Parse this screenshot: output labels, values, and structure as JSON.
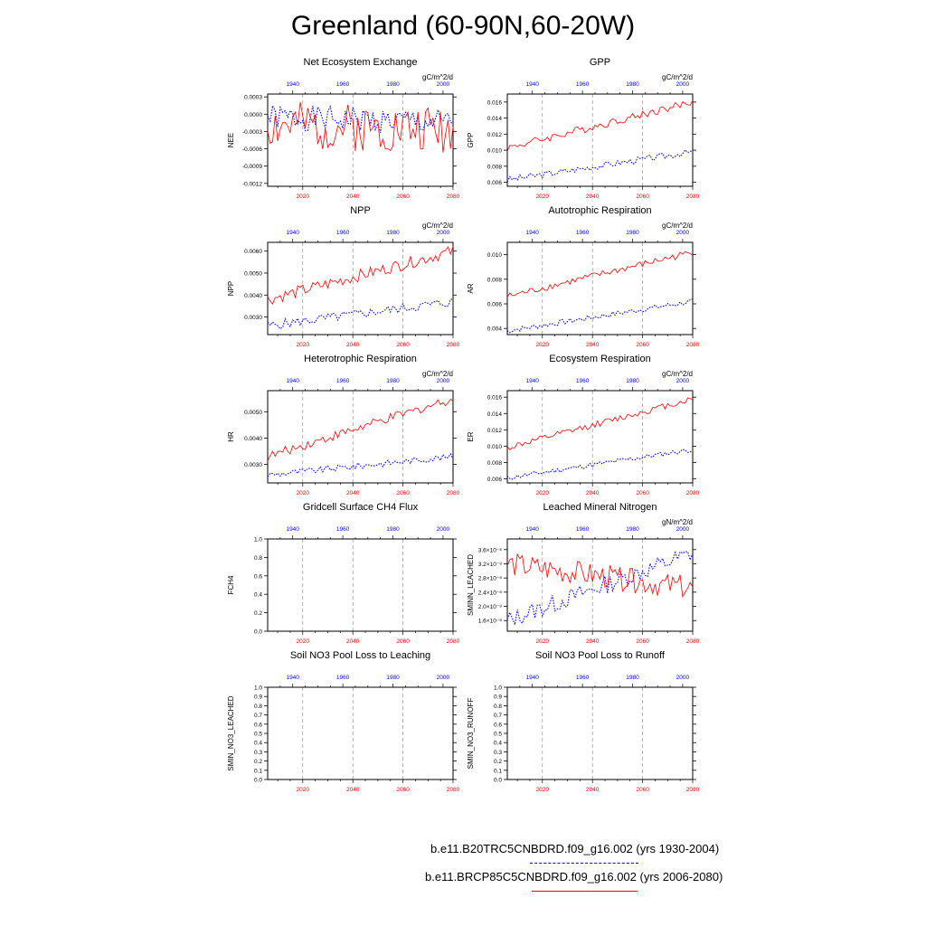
{
  "title": "Greenland (60-90N,60-20W)",
  "axes": {
    "top_ticks": [
      "1940",
      "1960",
      "1980",
      "2000"
    ],
    "bottom_ticks": [
      "2020",
      "2040",
      "2060",
      "2080"
    ]
  },
  "colors": {
    "hist": "#0000ff",
    "future": "#ff0000",
    "gridline": "#808080"
  },
  "legend": {
    "hist_label": "b.e11.B20TRC5CNBDRD.f09_g16.002 (yrs 1930-2004)",
    "future_label": "b.e11.BRCP85C5CNBDRD.f09_g16.002 (yrs 2006-2080)"
  },
  "chart_data": [
    {
      "type": "line",
      "title": "Net Ecosystem Exchange",
      "ylabel": "NEE",
      "units": "gC/m^2/d",
      "ylim": [
        -0.00125,
        0.00035
      ],
      "yticks": [
        0.0003,
        0.0,
        -0.0003,
        -0.0006,
        -0.0009,
        -0.0012
      ],
      "ytick_labels": [
        "0.0003",
        "0.0000",
        "-0.0003",
        "-0.0006",
        "-0.0009",
        "-0.0012"
      ],
      "x_future": [
        2006,
        2080
      ],
      "x_hist": [
        1930,
        2004
      ],
      "series": [
        {
          "name": "hist",
          "start": -5e-05,
          "end": -0.00015,
          "noise": 0.00022,
          "seed": 1,
          "values": []
        },
        {
          "name": "future",
          "start": -0.0002,
          "end": -0.00025,
          "noise": 0.00042,
          "seed": 2,
          "values": []
        }
      ]
    },
    {
      "type": "line",
      "title": "GPP",
      "ylabel": "GPP",
      "units": "gC/m^2/d",
      "ylim": [
        0.0055,
        0.017
      ],
      "yticks": [
        0.016,
        0.014,
        0.012,
        0.01,
        0.008,
        0.006
      ],
      "ytick_labels": [
        "0.016",
        "0.014",
        "0.012",
        "0.010",
        "0.008",
        "0.006"
      ],
      "x_future": [
        2006,
        2080
      ],
      "x_hist": [
        1930,
        2004
      ],
      "series": [
        {
          "name": "hist",
          "start": 0.0063,
          "end": 0.0098,
          "noise": 0.0004,
          "seed": 3,
          "values": []
        },
        {
          "name": "future",
          "start": 0.0103,
          "end": 0.016,
          "noise": 0.0005,
          "seed": 4,
          "values": []
        }
      ]
    },
    {
      "type": "line",
      "title": "NPP",
      "ylabel": "NPP",
      "units": "gC/m^2/d",
      "ylim": [
        0.0022,
        0.0064
      ],
      "yticks": [
        0.006,
        0.005,
        0.004,
        0.003
      ],
      "ytick_labels": [
        "0.0060",
        "0.0050",
        "0.0040",
        "0.0030"
      ],
      "x_future": [
        2006,
        2080
      ],
      "x_hist": [
        1930,
        2004
      ],
      "series": [
        {
          "name": "hist",
          "start": 0.0026,
          "end": 0.0037,
          "noise": 0.00022,
          "seed": 5,
          "values": []
        },
        {
          "name": "future",
          "start": 0.0038,
          "end": 0.006,
          "noise": 0.00028,
          "seed": 6,
          "values": []
        }
      ]
    },
    {
      "type": "line",
      "title": "Autotrophic Respiration",
      "ylabel": "AR",
      "units": "gC/m^2/d",
      "ylim": [
        0.0035,
        0.011
      ],
      "yticks": [
        0.01,
        0.008,
        0.006,
        0.004
      ],
      "ytick_labels": [
        "0.010",
        "0.008",
        "0.006",
        "0.004"
      ],
      "x_future": [
        2006,
        2080
      ],
      "x_hist": [
        1930,
        2004
      ],
      "series": [
        {
          "name": "hist",
          "start": 0.0038,
          "end": 0.0062,
          "noise": 0.00022,
          "seed": 7,
          "values": []
        },
        {
          "name": "future",
          "start": 0.0066,
          "end": 0.0102,
          "noise": 0.00028,
          "seed": 8,
          "values": []
        }
      ]
    },
    {
      "type": "line",
      "title": "Heterotrophic Respiration",
      "ylabel": "HR",
      "units": "gC/m^2/d",
      "ylim": [
        0.0023,
        0.0058
      ],
      "yticks": [
        0.005,
        0.004,
        0.003
      ],
      "ytick_labels": [
        "0.0050",
        "0.0040",
        "0.0030"
      ],
      "x_future": [
        2006,
        2080
      ],
      "x_hist": [
        1930,
        2004
      ],
      "series": [
        {
          "name": "hist",
          "start": 0.0026,
          "end": 0.0033,
          "noise": 0.00012,
          "seed": 9,
          "values": []
        },
        {
          "name": "future",
          "start": 0.0033,
          "end": 0.0055,
          "noise": 0.00018,
          "seed": 10,
          "values": []
        }
      ]
    },
    {
      "type": "line",
      "title": "Ecosystem Respiration",
      "ylabel": "ER",
      "units": "gC/m^2/d",
      "ylim": [
        0.0055,
        0.0168
      ],
      "yticks": [
        0.016,
        0.014,
        0.012,
        0.01,
        0.008,
        0.006
      ],
      "ytick_labels": [
        "0.016",
        "0.014",
        "0.012",
        "0.010",
        "0.008",
        "0.006"
      ],
      "x_future": [
        2006,
        2080
      ],
      "x_hist": [
        1930,
        2004
      ],
      "series": [
        {
          "name": "hist",
          "start": 0.0061,
          "end": 0.0096,
          "noise": 0.0003,
          "seed": 11,
          "values": []
        },
        {
          "name": "future",
          "start": 0.0098,
          "end": 0.0158,
          "noise": 0.0004,
          "seed": 12,
          "values": []
        }
      ]
    },
    {
      "type": "line",
      "title": "Gridcell Surface CH4 Flux",
      "ylabel": "FCH4",
      "units": "",
      "ylim": [
        0.0,
        1.0
      ],
      "yticks": [
        1.0,
        0.8,
        0.6,
        0.4,
        0.2,
        0.0
      ],
      "ytick_labels": [
        "1.0",
        "0.8",
        "0.6",
        "0.4",
        "0.2",
        "0.0"
      ],
      "x_future": [
        2006,
        2080
      ],
      "x_hist": [
        1930,
        2004
      ],
      "series": []
    },
    {
      "type": "line",
      "title": "Leached Mineral Nitrogen",
      "ylabel": "SMINN_LEACHED",
      "units": "gN/m^2/d",
      "ylim": [
        1.3e-08,
        3.9e-08
      ],
      "yticks": [
        3.6e-08,
        3.2e-08,
        2.8e-08,
        2.4e-08,
        2e-08,
        1.6e-08
      ],
      "ytick_labels": [
        "3.6×10⁻⁸",
        "3.2×10⁻⁸",
        "2.8×10⁻⁸",
        "2.4×10⁻⁸",
        "2.0×10⁻⁸",
        "1.6×10⁻⁸"
      ],
      "x_future": [
        2006,
        2080
      ],
      "x_hist": [
        1930,
        2004
      ],
      "series": [
        {
          "name": "hist",
          "start": 1.6e-08,
          "end": 3.5e-08,
          "noise": 2.6e-09,
          "seed": 13,
          "values": []
        },
        {
          "name": "future",
          "start": 3.2e-08,
          "end": 2.5e-08,
          "noise": 3.4e-09,
          "seed": 14,
          "values": []
        }
      ]
    },
    {
      "type": "line",
      "title": "Soil NO3 Pool Loss to Leaching",
      "ylabel": "SMIN_NO3_LEACHED",
      "units": "",
      "ylim": [
        0.0,
        1.0
      ],
      "yticks": [
        1.0,
        0.9,
        0.8,
        0.7,
        0.6,
        0.5,
        0.4,
        0.3,
        0.2,
        0.1,
        0.0
      ],
      "ytick_labels": [
        "1.0",
        "0.9",
        "0.8",
        "0.7",
        "0.6",
        "0.5",
        "0.4",
        "0.3",
        "0.2",
        "0.1",
        "0.0"
      ],
      "x_future": [
        2006,
        2080
      ],
      "x_hist": [
        1930,
        2004
      ],
      "series": []
    },
    {
      "type": "line",
      "title": "Soil NO3 Pool Loss to Runoff",
      "ylabel": "SMIN_NO3_RUNOFF",
      "units": "",
      "ylim": [
        0.0,
        1.0
      ],
      "yticks": [
        1.0,
        0.9,
        0.8,
        0.7,
        0.6,
        0.5,
        0.4,
        0.3,
        0.2,
        0.1,
        0.0
      ],
      "ytick_labels": [
        "1.0",
        "0.9",
        "0.8",
        "0.7",
        "0.6",
        "0.5",
        "0.4",
        "0.3",
        "0.2",
        "0.1",
        "0.0"
      ],
      "x_future": [
        2006,
        2080
      ],
      "x_hist": [
        1930,
        2004
      ],
      "series": []
    }
  ]
}
